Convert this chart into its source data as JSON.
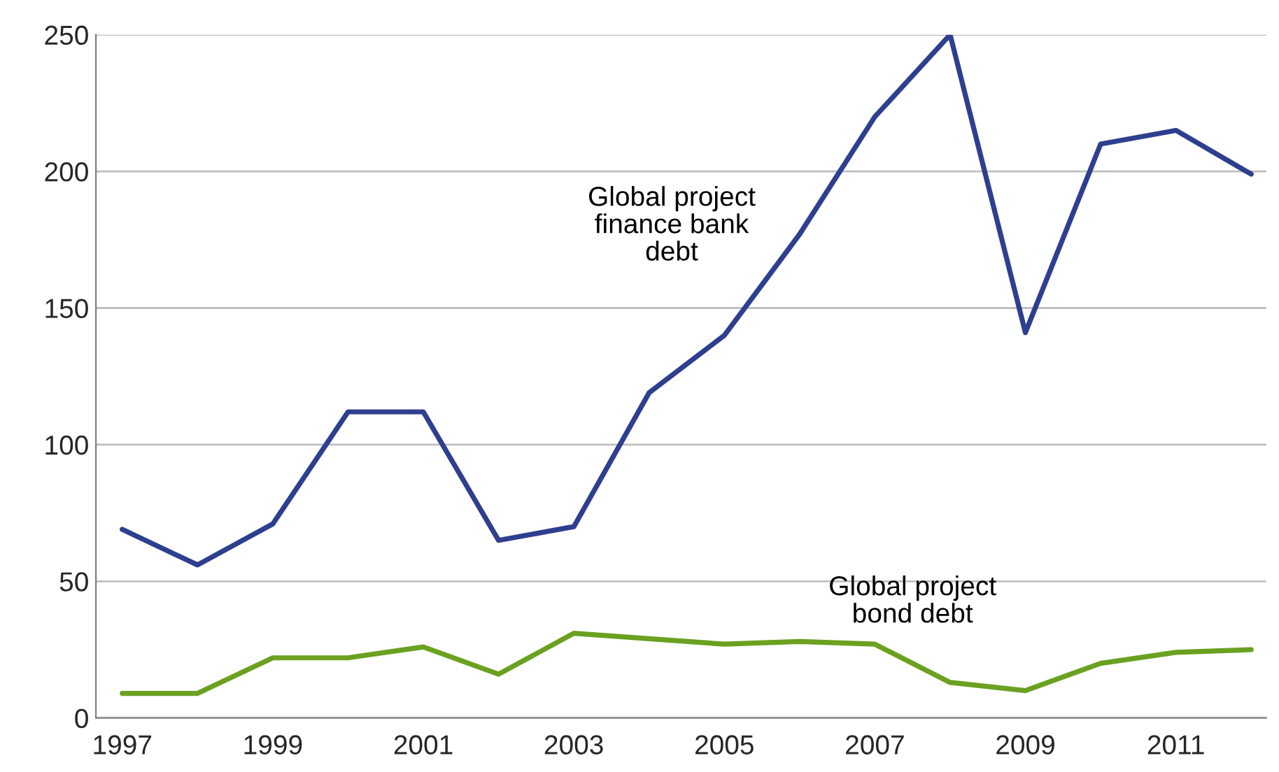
{
  "chart_data": {
    "type": "line",
    "categories": [
      "1997",
      null,
      "1999",
      null,
      "2001",
      null,
      "2003",
      null,
      "2005",
      null,
      "2007",
      null,
      "2009",
      null,
      "2011",
      null
    ],
    "series": [
      {
        "name": "Global project\nfinance bank\ndebt",
        "color": "#2e3f8f",
        "values": [
          69,
          56,
          71,
          112,
          112,
          65,
          70,
          119,
          140,
          177,
          220,
          250,
          141,
          210,
          215,
          199
        ]
      },
      {
        "name": "Global project\nbond debt",
        "color": "#6aa121",
        "values": [
          9,
          9,
          22,
          22,
          26,
          16,
          31,
          29,
          27,
          28,
          27,
          13,
          10,
          20,
          24,
          25
        ]
      }
    ],
    "ylim": [
      0,
      250
    ],
    "yticks": [
      0,
      50,
      100,
      150,
      200,
      250
    ],
    "grid": "y",
    "legend": false,
    "marker": "none",
    "line_style": "solid"
  }
}
